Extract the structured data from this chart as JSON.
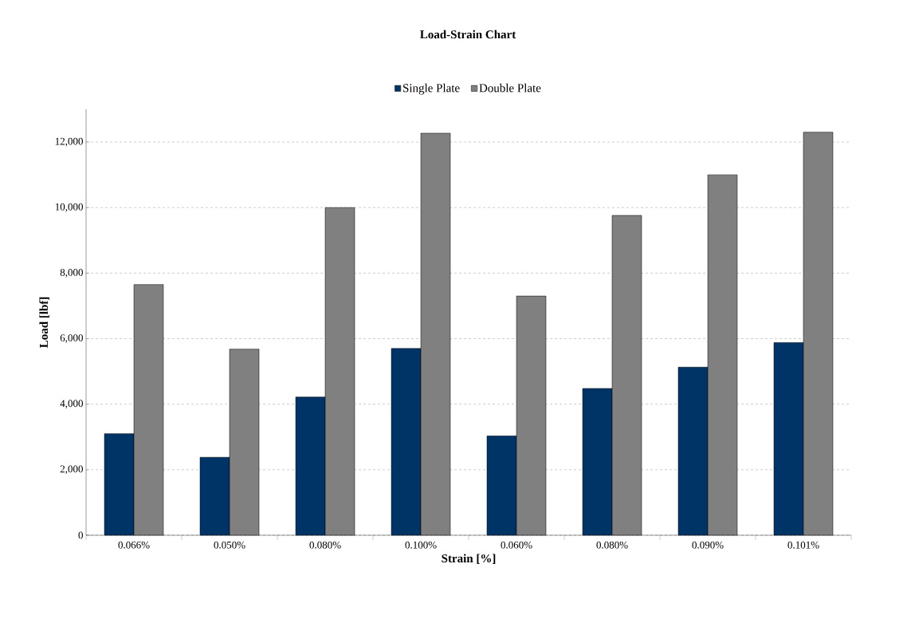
{
  "chart_data": {
    "type": "bar",
    "title": "Load-Strain Chart",
    "xlabel": "Strain [%]",
    "ylabel": "Load [lbf]",
    "categories": [
      "0.066%",
      "0.050%",
      "0.080%",
      "0.100%",
      "0.060%",
      "0.080%",
      "0.090%",
      "0.101%"
    ],
    "series": [
      {
        "name": "Single Plate",
        "color": "#003366",
        "values": [
          3100,
          2380,
          4220,
          5700,
          3030,
          4480,
          5130,
          5880
        ]
      },
      {
        "name": "Double Plate",
        "color": "#808080",
        "values": [
          7650,
          5680,
          10000,
          12270,
          7300,
          9760,
          11000,
          12300
        ]
      }
    ],
    "ylim": [
      0,
      13000
    ],
    "yticks": [
      0,
      {
        "value": 2000,
        "label": "2,000"
      },
      {
        "value": 4000,
        "label": "4,000"
      },
      {
        "value": 6000,
        "label": "6,000"
      },
      {
        "value": 8000,
        "label": "8,000"
      },
      {
        "value": 10000,
        "label": "10,000"
      },
      {
        "value": 12000,
        "label": "12,000"
      }
    ],
    "grid": "y",
    "legend": "top"
  }
}
